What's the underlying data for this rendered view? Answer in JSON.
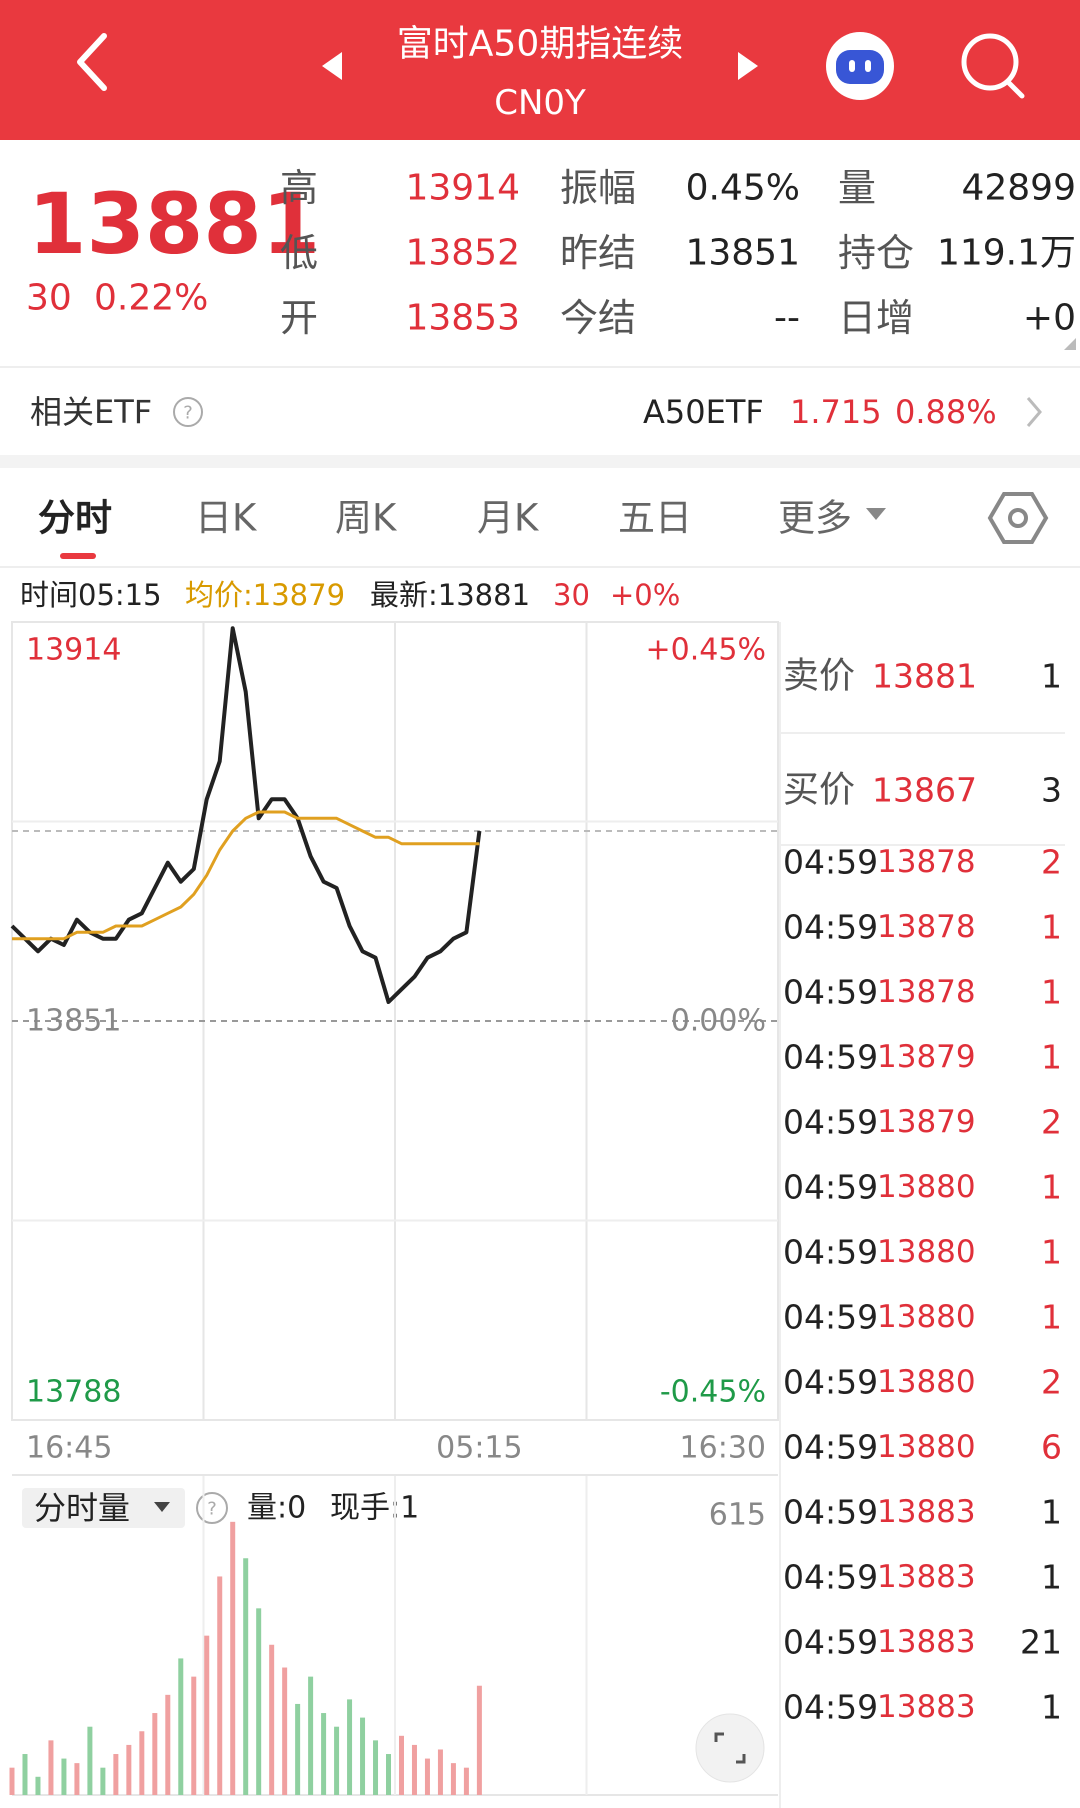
{
  "header": {
    "title": "富时A50期指连续",
    "code": "CN0Y"
  },
  "quote": {
    "price": 13881,
    "change": 30,
    "change_pct": "0.22%",
    "stats": [
      [
        "高",
        13914,
        "振幅",
        "0.45%",
        "量",
        42899
      ],
      [
        "低",
        13852,
        "昨结",
        13851,
        "持仓",
        "119.1万"
      ],
      [
        "开",
        13853,
        "今结",
        "--",
        "日增",
        "+0"
      ]
    ]
  },
  "etf": {
    "label": "相关ETF",
    "name": "A50ETF",
    "price": 1.715,
    "change_pct": "0.88%"
  },
  "tabs": [
    "分时",
    "日K",
    "周K",
    "月K",
    "五日",
    "更多"
  ],
  "info": {
    "time": "时间05:15",
    "avg": "均价:13879",
    "latest": "最新:13881",
    "change": 30,
    "change_pct": "+0%"
  },
  "volume_panel": {
    "selector": "分时量",
    "volume": "量:0",
    "current": "现手:1"
  },
  "order_book": {
    "ask": {
      "label": "卖价",
      "price": 13881,
      "qty": 1
    },
    "bid": {
      "label": "买价",
      "price": 13867,
      "qty": 3
    },
    "trades": [
      {
        "time": "04:59",
        "price": 13878,
        "qty": 2,
        "qty_color": "#e0303a"
      },
      {
        "time": "04:59",
        "price": 13878,
        "qty": 1,
        "qty_color": "#e0303a"
      },
      {
        "time": "04:59",
        "price": 13878,
        "qty": 1,
        "qty_color": "#e0303a"
      },
      {
        "time": "04:59",
        "price": 13879,
        "qty": 1,
        "qty_color": "#e0303a"
      },
      {
        "time": "04:59",
        "price": 13879,
        "qty": 2,
        "qty_color": "#e0303a"
      },
      {
        "time": "04:59",
        "price": 13880,
        "qty": 1,
        "qty_color": "#e0303a"
      },
      {
        "time": "04:59",
        "price": 13880,
        "qty": 1,
        "qty_color": "#e0303a"
      },
      {
        "time": "04:59",
        "price": 13880,
        "qty": 1,
        "qty_color": "#e0303a"
      },
      {
        "time": "04:59",
        "price": 13880,
        "qty": 2,
        "qty_color": "#e0303a"
      },
      {
        "time": "04:59",
        "price": 13880,
        "qty": 6,
        "qty_color": "#e0303a"
      },
      {
        "time": "04:59",
        "price": 13883,
        "qty": 1,
        "qty_color": "#222222"
      },
      {
        "time": "04:59",
        "price": 13883,
        "qty": 1,
        "qty_color": "#222222"
      },
      {
        "time": "04:59",
        "price": 13883,
        "qty": 21,
        "qty_color": "#222222"
      },
      {
        "time": "04:59",
        "price": 13883,
        "qty": 1,
        "qty_color": "#222222"
      }
    ]
  },
  "chart_data": [
    {
      "type": "line",
      "categories": [
        "16:45",
        null,
        null,
        null,
        null,
        null,
        null,
        null,
        null,
        null,
        null,
        null,
        null,
        null,
        null,
        null,
        null,
        null,
        null,
        null,
        null,
        null,
        null,
        null,
        null,
        null,
        null,
        null,
        null,
        null,
        null,
        null,
        null,
        null,
        null,
        null,
        "05:15",
        null,
        null,
        null,
        null,
        null,
        null,
        null,
        null,
        null,
        null,
        null,
        null,
        null,
        null,
        null,
        null,
        null,
        null,
        null,
        null,
        null,
        null,
        "16:30"
      ],
      "series": [
        {
          "color": "#222222",
          "values": [
            13866,
            13864,
            13862,
            13864,
            13863,
            13867,
            13865,
            13864,
            13864,
            13867,
            13868,
            13872,
            13876,
            13873,
            13875,
            13886,
            13892,
            13913,
            13903,
            13883,
            13886,
            13886,
            13883,
            13877,
            13873,
            13872,
            13866,
            13862,
            13861,
            13854,
            13856,
            13858,
            13861,
            13862,
            13864,
            13865,
            13881,
            null,
            null,
            null,
            null,
            null,
            null,
            null,
            null,
            null,
            null,
            null,
            null,
            null,
            null,
            null,
            null,
            null,
            null,
            null,
            null,
            null,
            null,
            null
          ]
        },
        {
          "color": "#e0a020",
          "values": [
            13864,
            13864,
            13864,
            13864,
            13864,
            13865,
            13865,
            13865,
            13866,
            13866,
            13866,
            13867,
            13868,
            13869,
            13871,
            13874,
            13878,
            13881,
            13883,
            13884,
            13884,
            13884,
            13883,
            13883,
            13883,
            13883,
            13882,
            13881,
            13880,
            13880,
            13879,
            13879,
            13879,
            13879,
            13879,
            13879,
            13879,
            null,
            null,
            null,
            null,
            null,
            null,
            null,
            null,
            null,
            null,
            null,
            null,
            null,
            null,
            null,
            null,
            null,
            null,
            null,
            null,
            null,
            null,
            null
          ]
        }
      ],
      "ylim": [
        13788,
        13914
      ],
      "yticks": [
        13788,
        13851,
        13914
      ],
      "y2lim": [
        -0.45,
        0.45
      ],
      "y2ticks": [
        {
          "value": -0.45,
          "label": "-0.45%"
        },
        {
          "value": 0,
          "label": "0.00%"
        },
        {
          "value": 0.45,
          "label": "+0.45%"
        }
      ],
      "up_color": "#e0303a",
      "down_color": "#1f9a48",
      "flat_color": "#888888"
    },
    {
      "type": "bar",
      "values": [
        60,
        90,
        40,
        120,
        80,
        70,
        150,
        60,
        90,
        110,
        140,
        180,
        220,
        300,
        260,
        350,
        480,
        600,
        520,
        410,
        330,
        280,
        200,
        260,
        180,
        150,
        210,
        170,
        120,
        90,
        130,
        110,
        80,
        100,
        70,
        60,
        240
      ],
      "ylim": [
        0,
        615
      ],
      "yticks": [
        615
      ],
      "up_color": "#f0a0a0",
      "down_color": "#8fd0a0"
    }
  ]
}
